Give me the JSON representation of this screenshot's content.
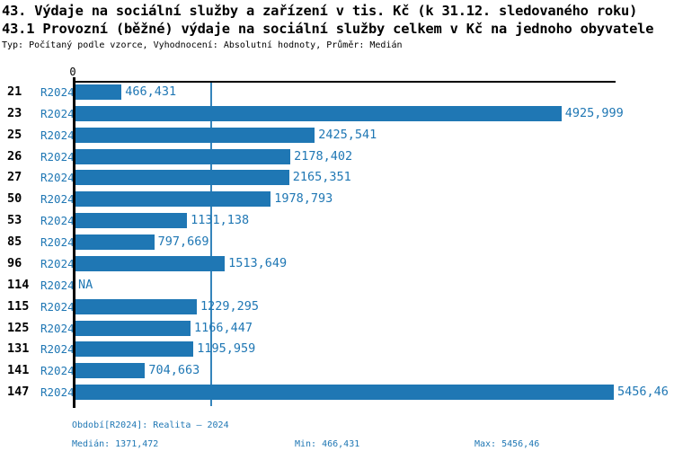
{
  "header": {
    "title": "43. Výdaje na sociální služby a zařízení v tis. Kč (k 31.12. sledovaného roku)",
    "subtitle": "43.1 Provozní (běžné) výdaje na sociální služby celkem v Kč na jednoho obyvatele",
    "meta": "Typ: Počítaný podle vzorce, Vyhodnocení: Absolutní hodnoty, Průměr: Medián"
  },
  "chart_data": {
    "type": "bar",
    "orientation": "horizontal",
    "title": "43.1 Provozní (běžné) výdaje na sociální služby celkem v Kč na jednoho obyvatele",
    "categories": [
      "21",
      "23",
      "25",
      "26",
      "27",
      "50",
      "53",
      "85",
      "96",
      "114",
      "115",
      "125",
      "131",
      "141",
      "147"
    ],
    "series": [
      {
        "name": "R2024",
        "values": [
          466.431,
          4925.999,
          2425.541,
          2178.402,
          2165.351,
          1978.793,
          1131.138,
          797.669,
          1513.649,
          null,
          1229.295,
          1166.447,
          1195.959,
          704.663,
          5456.46
        ],
        "value_labels": [
          "466,431",
          "4925,999",
          "2425,541",
          "2178,402",
          "2165,351",
          "1978,793",
          "1131,138",
          "797,669",
          "1513,649",
          "NA",
          "1229,295",
          "1166,447",
          "1195,959",
          "704,663",
          "5456,46"
        ]
      }
    ],
    "na_label": "NA",
    "x_axis": {
      "zero_label": "0",
      "xlim": [
        0,
        5484
      ],
      "grid": false
    },
    "median_line_value": 1371.472,
    "stats": {
      "median": 1371.472,
      "min": 466.431,
      "max": 5456.46
    },
    "legend_position": "none"
  },
  "footer": {
    "period": "Období[R2024]: Realita – 2024",
    "median": "Medián: 1371,472",
    "min": "Min: 466,431",
    "max": "Max: 5456,46"
  },
  "colors": {
    "bar": "#1f77b4",
    "blue_text": "#1f77b4",
    "axis": "#000000",
    "median_line": "#1f77b4",
    "background": "#ffffff"
  }
}
